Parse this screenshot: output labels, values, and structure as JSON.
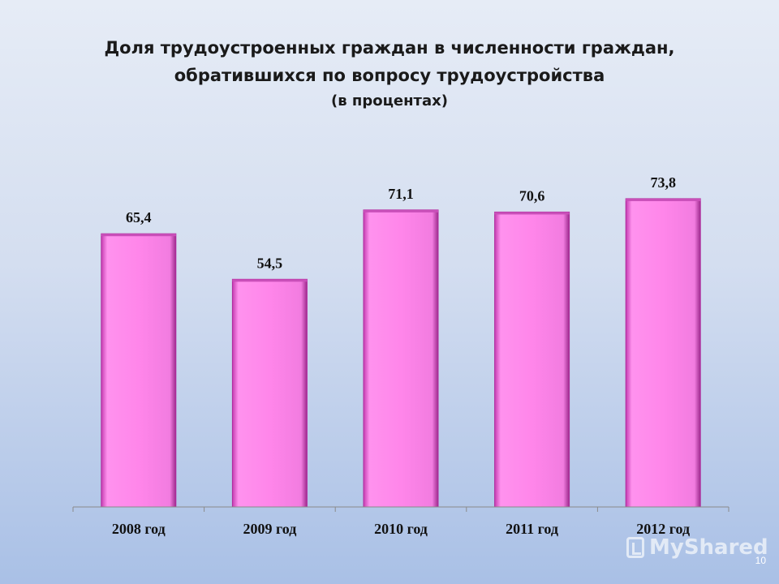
{
  "slide": {
    "title_line1": "Доля трудоустроенных граждан в численности граждан,",
    "title_line2": "обратившихся по вопросу трудоустройства",
    "subtitle": "(в процентах)",
    "page_number": "10",
    "watermark": "MyShared"
  },
  "chart_data": {
    "type": "bar",
    "title": "Доля трудоустроенных граждан в численности граждан, обратившихся по вопросу трудоустройства",
    "subtitle": "(в процентах)",
    "categories": [
      "2008 год",
      "2009 год",
      "2010 год",
      "2011 год",
      "2012 год"
    ],
    "values": [
      65.4,
      54.5,
      71.1,
      70.6,
      73.8
    ],
    "value_labels": [
      "65,4",
      "54,5",
      "71,1",
      "70,6",
      "73,8"
    ],
    "ylim": [
      0,
      100
    ],
    "grid": false,
    "legend": "none",
    "bar_color": "#ff88ec",
    "bar_edge_color": "#b02a9e"
  }
}
